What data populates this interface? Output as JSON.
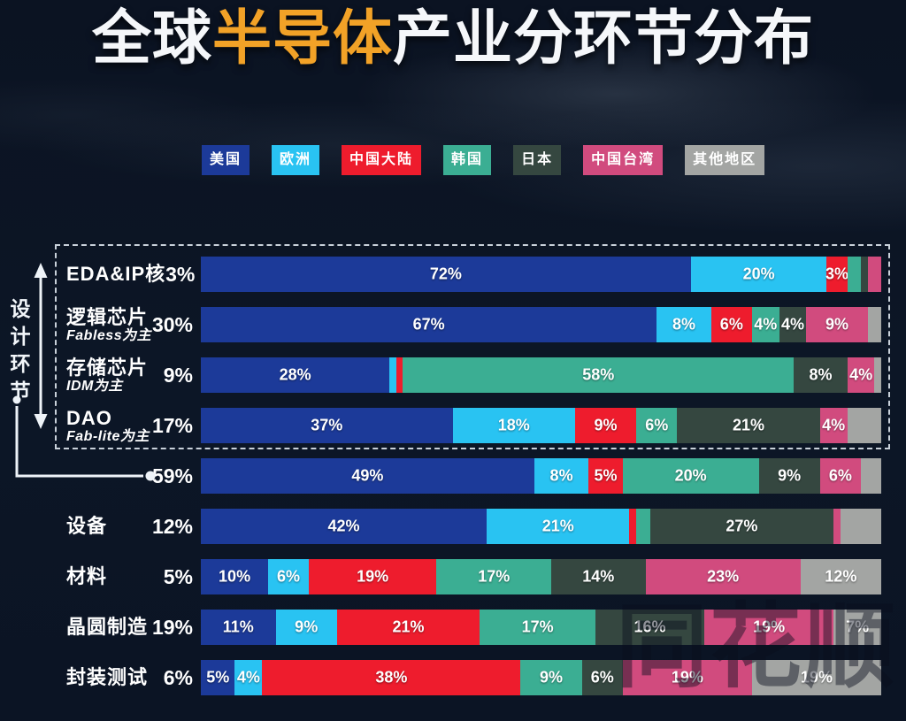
{
  "title": {
    "prefix": "全球",
    "highlight": "半导体",
    "suffix": "产业分环节分布",
    "highlight_color": "#f2a227"
  },
  "legend": {
    "items": [
      "美国",
      "欧洲",
      "中国大陆",
      "韩国",
      "日本",
      "中国台湾",
      "其他地区"
    ]
  },
  "design_label": "设计环节",
  "watermark": "同花顺",
  "chart_data": {
    "type": "bar",
    "variant": "horizontal-stacked-percent",
    "title": "全球半导体产业分环节分布",
    "legend_position": "top",
    "regions": [
      "美国",
      "欧洲",
      "中国大陆",
      "韩国",
      "日本",
      "中国台湾",
      "其他地区"
    ],
    "region_colors": {
      "美国": "#1c3a99",
      "欧洲": "#29c3f2",
      "中国大陆": "#ee1c2d",
      "韩国": "#3bae93",
      "日本": "#354740",
      "中国台湾": "#d14b7e",
      "其他地区": "#a3a5a3"
    },
    "rows": [
      {
        "label": "EDA&IP核",
        "sublabel": "",
        "share": "3%",
        "in_design_group": true,
        "segments": [
          {
            "region": "美国",
            "value": 72,
            "text": "72%"
          },
          {
            "region": "欧洲",
            "value": 20,
            "text": "20%"
          },
          {
            "region": "中国大陆",
            "value": 3,
            "text": "3%"
          },
          {
            "region": "韩国",
            "value": 2,
            "text": ""
          },
          {
            "region": "日本",
            "value": 1,
            "text": ""
          },
          {
            "region": "中国台湾",
            "value": 2,
            "text": ""
          }
        ]
      },
      {
        "label": "逻辑芯片",
        "sublabel": "Fabless为主",
        "share": "30%",
        "in_design_group": true,
        "segments": [
          {
            "region": "美国",
            "value": 67,
            "text": "67%"
          },
          {
            "region": "欧洲",
            "value": 8,
            "text": "8%"
          },
          {
            "region": "中国大陆",
            "value": 6,
            "text": "6%"
          },
          {
            "region": "韩国",
            "value": 4,
            "text": "4%"
          },
          {
            "region": "日本",
            "value": 4,
            "text": "4%"
          },
          {
            "region": "中国台湾",
            "value": 9,
            "text": "9%"
          },
          {
            "region": "其他地区",
            "value": 2,
            "text": ""
          }
        ]
      },
      {
        "label": "存储芯片",
        "sublabel": "IDM为主",
        "share": "9%",
        "in_design_group": true,
        "segments": [
          {
            "region": "美国",
            "value": 28,
            "text": "28%"
          },
          {
            "region": "欧洲",
            "value": 1,
            "text": ""
          },
          {
            "region": "中国大陆",
            "value": 1,
            "text": ""
          },
          {
            "region": "韩国",
            "value": 58,
            "text": "58%"
          },
          {
            "region": "日本",
            "value": 8,
            "text": "8%"
          },
          {
            "region": "中国台湾",
            "value": 4,
            "text": "4%"
          },
          {
            "region": "其他地区",
            "value": 1,
            "text": ""
          }
        ]
      },
      {
        "label": "DAO",
        "sublabel": "Fab-lite为主",
        "share": "17%",
        "in_design_group": true,
        "segments": [
          {
            "region": "美国",
            "value": 37,
            "text": "37%"
          },
          {
            "region": "欧洲",
            "value": 18,
            "text": "18%"
          },
          {
            "region": "中国大陆",
            "value": 9,
            "text": "9%"
          },
          {
            "region": "韩国",
            "value": 6,
            "text": "6%"
          },
          {
            "region": "日本",
            "value": 21,
            "text": "21%"
          },
          {
            "region": "中国台湾",
            "value": 4,
            "text": "4%"
          },
          {
            "region": "其他地区",
            "value": 5,
            "text": ""
          }
        ]
      },
      {
        "label": "",
        "sublabel": "",
        "share": "59%",
        "in_design_group": false,
        "is_design_total": true,
        "segments": [
          {
            "region": "美国",
            "value": 49,
            "text": "49%"
          },
          {
            "region": "欧洲",
            "value": 8,
            "text": "8%"
          },
          {
            "region": "中国大陆",
            "value": 5,
            "text": "5%"
          },
          {
            "region": "韩国",
            "value": 20,
            "text": "20%"
          },
          {
            "region": "日本",
            "value": 9,
            "text": "9%"
          },
          {
            "region": "中国台湾",
            "value": 6,
            "text": "6%"
          },
          {
            "region": "其他地区",
            "value": 3,
            "text": ""
          }
        ]
      },
      {
        "label": "设备",
        "sublabel": "",
        "share": "12%",
        "in_design_group": false,
        "segments": [
          {
            "region": "美国",
            "value": 42,
            "text": "42%"
          },
          {
            "region": "欧洲",
            "value": 21,
            "text": "21%"
          },
          {
            "region": "中国大陆",
            "value": 1,
            "text": ""
          },
          {
            "region": "韩国",
            "value": 2,
            "text": ""
          },
          {
            "region": "日本",
            "value": 27,
            "text": "27%"
          },
          {
            "region": "中国台湾",
            "value": 1,
            "text": ""
          },
          {
            "region": "其他地区",
            "value": 6,
            "text": ""
          }
        ]
      },
      {
        "label": "材料",
        "sublabel": "",
        "share": "5%",
        "in_design_group": false,
        "segments": [
          {
            "region": "美国",
            "value": 10,
            "text": "10%"
          },
          {
            "region": "欧洲",
            "value": 6,
            "text": "6%"
          },
          {
            "region": "中国大陆",
            "value": 19,
            "text": "19%"
          },
          {
            "region": "韩国",
            "value": 17,
            "text": "17%"
          },
          {
            "region": "日本",
            "value": 14,
            "text": "14%"
          },
          {
            "region": "中国台湾",
            "value": 23,
            "text": "23%"
          },
          {
            "region": "其他地区",
            "value": 12,
            "text": "12%"
          }
        ]
      },
      {
        "label": "晶圆制造",
        "sublabel": "",
        "share": "19%",
        "in_design_group": false,
        "segments": [
          {
            "region": "美国",
            "value": 11,
            "text": "11%"
          },
          {
            "region": "欧洲",
            "value": 9,
            "text": "9%"
          },
          {
            "region": "中国大陆",
            "value": 21,
            "text": "21%"
          },
          {
            "region": "韩国",
            "value": 17,
            "text": "17%"
          },
          {
            "region": "日本",
            "value": 16,
            "text": "16%"
          },
          {
            "region": "中国台湾",
            "value": 19,
            "text": "19%"
          },
          {
            "region": "其他地区",
            "value": 7,
            "text": "7%"
          }
        ]
      },
      {
        "label": "封装测试",
        "sublabel": "",
        "share": "6%",
        "in_design_group": false,
        "segments": [
          {
            "region": "美国",
            "value": 5,
            "text": "5%"
          },
          {
            "region": "欧洲",
            "value": 4,
            "text": "4%"
          },
          {
            "region": "中国大陆",
            "value": 38,
            "text": "38%"
          },
          {
            "region": "韩国",
            "value": 9,
            "text": "9%"
          },
          {
            "region": "日本",
            "value": 6,
            "text": "6%"
          },
          {
            "region": "中国台湾",
            "value": 19,
            "text": "19%"
          },
          {
            "region": "其他地区",
            "value": 19,
            "text": "19%"
          }
        ]
      }
    ]
  }
}
